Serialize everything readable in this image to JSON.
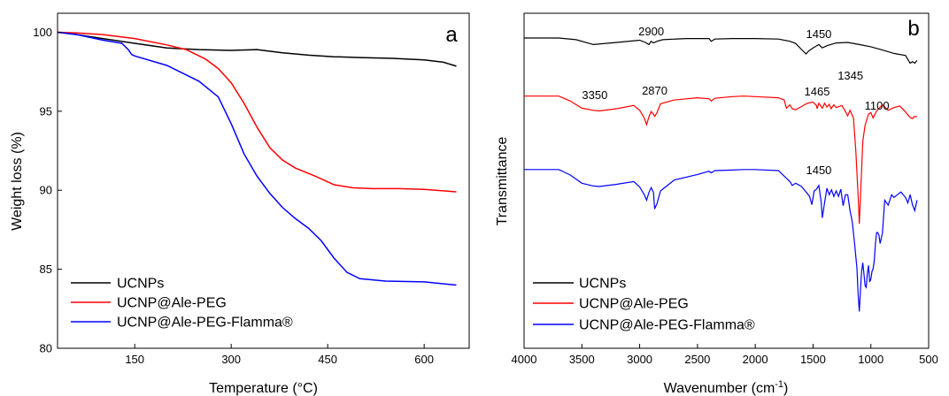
{
  "chart_data": [
    {
      "panel": "a",
      "type": "line",
      "xlabel": "Temperature (°C)",
      "ylabel": "Weight loss (%)",
      "xlim": [
        30,
        670
      ],
      "ylim": [
        80,
        101.2
      ],
      "xticks": [
        150,
        300,
        450,
        600
      ],
      "yticks": [
        80,
        85,
        90,
        95,
        100
      ],
      "legend": "bottom-left",
      "series": [
        {
          "name": "UCNPs",
          "color": "#000000",
          "x": [
            30,
            60,
            100,
            150,
            200,
            250,
            300,
            340,
            380,
            420,
            460,
            500,
            550,
            600,
            630,
            650
          ],
          "y": [
            100,
            99.85,
            99.6,
            99.3,
            99.0,
            98.9,
            98.85,
            98.9,
            98.7,
            98.55,
            98.45,
            98.4,
            98.35,
            98.25,
            98.1,
            97.85
          ]
        },
        {
          "name": "UCNP@Ale-PEG",
          "color": "#ff0000",
          "x": [
            30,
            60,
            100,
            150,
            200,
            230,
            260,
            280,
            300,
            320,
            340,
            360,
            380,
            400,
            430,
            460,
            490,
            520,
            560,
            600,
            650
          ],
          "y": [
            100,
            99.95,
            99.85,
            99.6,
            99.2,
            98.9,
            98.3,
            97.7,
            96.8,
            95.5,
            94.0,
            92.7,
            91.9,
            91.4,
            90.9,
            90.35,
            90.15,
            90.1,
            90.1,
            90.05,
            89.9
          ]
        },
        {
          "name": "UCNP@Ale-PEG-Flamma®",
          "color": "#0000ff",
          "x": [
            30,
            60,
            100,
            130,
            140,
            145,
            150,
            200,
            250,
            280,
            300,
            320,
            340,
            360,
            380,
            400,
            420,
            440,
            460,
            480,
            500,
            540,
            600,
            650
          ],
          "y": [
            100,
            99.85,
            99.5,
            99.3,
            98.9,
            98.6,
            98.5,
            97.9,
            96.9,
            95.9,
            94.2,
            92.3,
            90.9,
            89.8,
            88.9,
            88.2,
            87.6,
            86.8,
            85.7,
            84.8,
            84.4,
            84.25,
            84.2,
            84.0
          ]
        }
      ]
    },
    {
      "panel": "b",
      "type": "line",
      "xlabel": "Wavenumber (cm⁻¹)",
      "ylabel": "Transmittance",
      "xlim": [
        4000,
        500
      ],
      "xticks": [
        4000,
        3500,
        3000,
        2500,
        2000,
        1500,
        1000,
        500
      ],
      "yticks": [],
      "legend": "bottom-left",
      "annotations": [
        {
          "text": "2900",
          "series": "UCNPs",
          "x": 2900
        },
        {
          "text": "1450",
          "series": "UCNPs",
          "x": 1450
        },
        {
          "text": "3350",
          "series": "UCNP@Ale-PEG",
          "x": 3350
        },
        {
          "text": "2870",
          "series": "UCNP@Ale-PEG",
          "x": 2870
        },
        {
          "text": "1465",
          "series": "UCNP@Ale-PEG",
          "x": 1465
        },
        {
          "text": "1345",
          "series": "UCNP@Ale-PEG",
          "x": 1345
        },
        {
          "text": "1100",
          "series": "UCNP@Ale-PEG",
          "x": 1100
        },
        {
          "text": "1450",
          "series": "UCNP@Ale-PEG-Flamma®",
          "x": 1450
        }
      ],
      "series": [
        {
          "name": "UCNPs",
          "color": "#000000",
          "x": [
            4000,
            3700,
            3550,
            3400,
            3200,
            3000,
            2950,
            2920,
            2900,
            2880,
            2850,
            2800,
            2600,
            2400,
            2380,
            2350,
            2200,
            2000,
            1800,
            1700,
            1650,
            1600,
            1560,
            1540,
            1500,
            1450,
            1420,
            1380,
            1300,
            1200,
            1100,
            1000,
            900,
            800,
            700,
            660,
            640,
            620,
            600
          ],
          "y": [
            0,
            0,
            -0.3,
            -1.2,
            -0.8,
            -0.4,
            -0.8,
            -1.2,
            -0.6,
            -0.9,
            -0.6,
            -0.3,
            -0.1,
            -0.1,
            -0.6,
            -0.2,
            -0.1,
            -0.1,
            -0.2,
            -0.6,
            -1.0,
            -2.1,
            -2.9,
            -2.4,
            -1.8,
            -1.2,
            -1.8,
            -1.4,
            -0.9,
            -0.8,
            -1.2,
            -1.6,
            -2.2,
            -2.8,
            -3.2,
            -4.6,
            -4.3,
            -4.6,
            -4.1
          ]
        },
        {
          "name": "UCNP@Ale-PEG",
          "color": "#ff0000",
          "x": [
            4000,
            3700,
            3600,
            3500,
            3400,
            3350,
            3200,
            3050,
            3000,
            2960,
            2940,
            2920,
            2900,
            2880,
            2870,
            2850,
            2820,
            2700,
            2500,
            2400,
            2380,
            2350,
            2200,
            2100,
            2000,
            1800,
            1750,
            1730,
            1700,
            1680,
            1650,
            1600,
            1550,
            1500,
            1470,
            1465,
            1450,
            1420,
            1400,
            1380,
            1360,
            1345,
            1320,
            1300,
            1250,
            1220,
            1200,
            1180,
            1150,
            1130,
            1110,
            1100,
            1090,
            1070,
            1050,
            1020,
            1000,
            980,
            950,
            900,
            850,
            800,
            750,
            700,
            660,
            640,
            620,
            600
          ],
          "y": [
            -10.6,
            -10.6,
            -11.5,
            -12.8,
            -13.2,
            -13.3,
            -12.9,
            -12.3,
            -13.2,
            -14.6,
            -15.8,
            -14.4,
            -13.4,
            -13.9,
            -14.3,
            -13.6,
            -12.0,
            -11.3,
            -10.9,
            -11.1,
            -11.5,
            -11.0,
            -10.7,
            -10.6,
            -10.7,
            -10.9,
            -11.3,
            -12.8,
            -12.2,
            -12.9,
            -13.1,
            -12.5,
            -11.9,
            -11.7,
            -12.3,
            -12.9,
            -11.9,
            -12.8,
            -11.9,
            -12.6,
            -12.1,
            -12.9,
            -12.2,
            -12.7,
            -12.3,
            -13.4,
            -14.2,
            -13.2,
            -14.6,
            -20.5,
            -29.0,
            -33.9,
            -29.0,
            -18.9,
            -15.9,
            -13.9,
            -13.6,
            -14.6,
            -13.3,
            -12.2,
            -13.2,
            -12.7,
            -12.4,
            -13.5,
            -14.5,
            -14.7,
            -14.3,
            -14.4
          ]
        },
        {
          "name": "UCNP@Ale-PEG-Flamma®",
          "color": "#0000ff",
          "x": [
            4000,
            3700,
            3600,
            3500,
            3400,
            3350,
            3200,
            3050,
            3000,
            2960,
            2940,
            2920,
            2900,
            2880,
            2870,
            2850,
            2820,
            2700,
            2500,
            2400,
            2380,
            2350,
            2200,
            2100,
            2000,
            1800,
            1750,
            1700,
            1680,
            1650,
            1600,
            1560,
            1530,
            1510,
            1490,
            1470,
            1450,
            1430,
            1420,
            1400,
            1380,
            1360,
            1340,
            1320,
            1300,
            1280,
            1260,
            1240,
            1220,
            1200,
            1180,
            1160,
            1140,
            1120,
            1110,
            1100,
            1090,
            1080,
            1070,
            1060,
            1050,
            1040,
            1030,
            1020,
            1010,
            1000,
            990,
            980,
            970,
            960,
            950,
            940,
            930,
            920,
            900,
            880,
            850,
            820,
            800,
            770,
            740,
            700,
            680,
            660,
            640,
            620,
            600
          ],
          "y": [
            -24.0,
            -24.0,
            -25.0,
            -26.5,
            -27.0,
            -27.1,
            -26.7,
            -26.2,
            -27.2,
            -28.6,
            -29.6,
            -28.2,
            -27.3,
            -28.2,
            -31.2,
            -30.2,
            -27.9,
            -25.9,
            -24.9,
            -24.3,
            -24.6,
            -24.2,
            -24.1,
            -24.0,
            -24.0,
            -24.2,
            -25.2,
            -26.2,
            -26.9,
            -26.5,
            -27.1,
            -28.1,
            -28.9,
            -30.4,
            -27.9,
            -27.6,
            -26.9,
            -29.9,
            -32.8,
            -30.0,
            -27.4,
            -28.6,
            -27.7,
            -28.9,
            -27.9,
            -28.9,
            -27.6,
            -30.6,
            -28.6,
            -28.6,
            -31.5,
            -33.6,
            -37.6,
            -42.0,
            -46.9,
            -49.9,
            -46.0,
            -42.6,
            -41.0,
            -43.0,
            -45.2,
            -45.5,
            -42.9,
            -41.5,
            -44.5,
            -44.0,
            -42.6,
            -42.1,
            -40.6,
            -37.5,
            -35.5,
            -35.5,
            -36.0,
            -37.5,
            -35.6,
            -29.6,
            -30.5,
            -28.6,
            -29.1,
            -28.6,
            -28.1,
            -29.1,
            -30.1,
            -28.6,
            -30.4,
            -31.5,
            -29.6
          ]
        }
      ]
    }
  ]
}
